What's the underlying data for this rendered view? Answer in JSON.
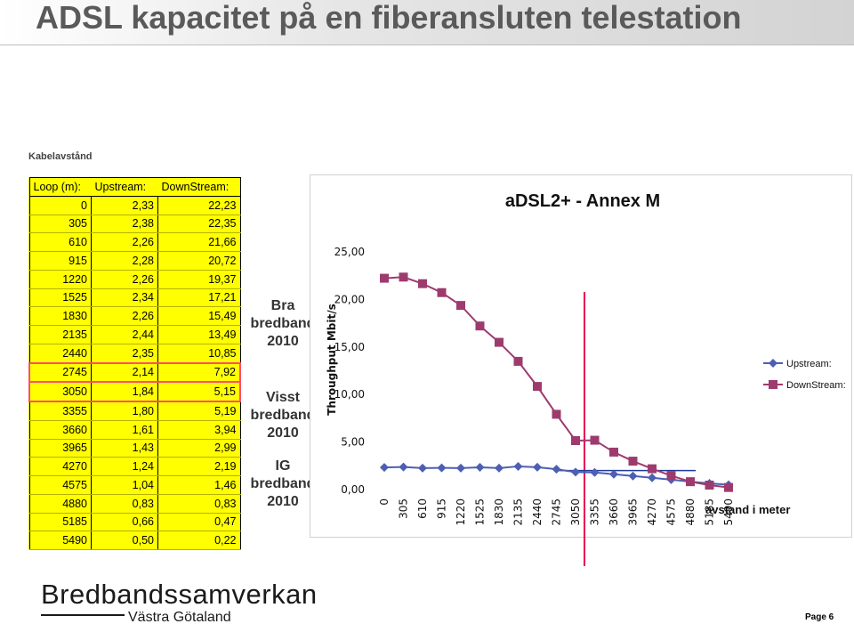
{
  "title": "ADSL kapacitet på en fiberansluten telestation",
  "section_label": "Kabelavstånd",
  "table": {
    "headers": [
      "Loop (m):",
      "Upstream:",
      "DownStream:"
    ],
    "rows": [
      [
        "0",
        "2,33",
        "22,23"
      ],
      [
        "305",
        "2,38",
        "22,35"
      ],
      [
        "610",
        "2,26",
        "21,66"
      ],
      [
        "915",
        "2,28",
        "20,72"
      ],
      [
        "1220",
        "2,26",
        "19,37"
      ],
      [
        "1525",
        "2,34",
        "17,21"
      ],
      [
        "1830",
        "2,26",
        "15,49"
      ],
      [
        "2135",
        "2,44",
        "13,49"
      ],
      [
        "2440",
        "2,35",
        "10,85"
      ],
      [
        "2745",
        "2,14",
        "7,92"
      ],
      [
        "3050",
        "1,84",
        "5,15"
      ],
      [
        "3355",
        "1,80",
        "5,19"
      ],
      [
        "3660",
        "1,61",
        "3,94"
      ],
      [
        "3965",
        "1,43",
        "2,99"
      ],
      [
        "4270",
        "1,24",
        "2,19"
      ],
      [
        "4575",
        "1,04",
        "1,46"
      ],
      [
        "4880",
        "0,83",
        "0,83"
      ],
      [
        "5185",
        "0,66",
        "0,47"
      ],
      [
        "5490",
        "0,50",
        "0,22"
      ]
    ],
    "highlighted_rows": [
      9,
      10
    ]
  },
  "side_labels": [
    {
      "line1": "Bra",
      "line2": "bredband",
      "line3": "2010"
    },
    {
      "line1": "Visst",
      "line2": "bredband",
      "line3": "2010"
    },
    {
      "line1": "IG",
      "line2": "bredband",
      "line3": "2010"
    }
  ],
  "colors": {
    "upstream": "#4d5fb3",
    "downstream": "#9e3b6e",
    "table_fill": "#ffff00",
    "highlight": "#ff4d6d",
    "marker_line": "#e8005a",
    "blue_line": "#1f3a99"
  },
  "chart_data": {
    "type": "line",
    "title": "aDSL2+ - Annex M",
    "ylabel": "Throughput Mbit/s",
    "xlabel": "avstand i meter",
    "ylim": [
      0,
      25
    ],
    "y_ticks": [
      "0,00",
      "5,00",
      "10,00",
      "15,00",
      "20,00",
      "25,00"
    ],
    "categories": [
      "0",
      "305",
      "610",
      "915",
      "1220",
      "1525",
      "1830",
      "2135",
      "2440",
      "2745",
      "3050",
      "3355",
      "3660",
      "3965",
      "4270",
      "4575",
      "4880",
      "5185",
      "5490"
    ],
    "series": [
      {
        "name": "Upstream:",
        "values": [
          2.33,
          2.38,
          2.26,
          2.28,
          2.26,
          2.34,
          2.26,
          2.44,
          2.35,
          2.14,
          1.84,
          1.8,
          1.61,
          1.43,
          1.24,
          1.04,
          0.83,
          0.66,
          0.5
        ]
      },
      {
        "name": "DownStream:",
        "values": [
          22.23,
          22.35,
          21.66,
          20.72,
          19.37,
          17.21,
          15.49,
          13.49,
          10.85,
          7.92,
          5.15,
          5.19,
          3.94,
          2.99,
          2.19,
          1.46,
          0.83,
          0.47,
          0.22
        ]
      }
    ],
    "vertical_marker_at": "3050",
    "threshold_line": 2.0,
    "legend_position": "right"
  },
  "logo": {
    "main": "Bredbandssamverkan",
    "sub": "Västra Götaland"
  },
  "page_label": "Page 6"
}
